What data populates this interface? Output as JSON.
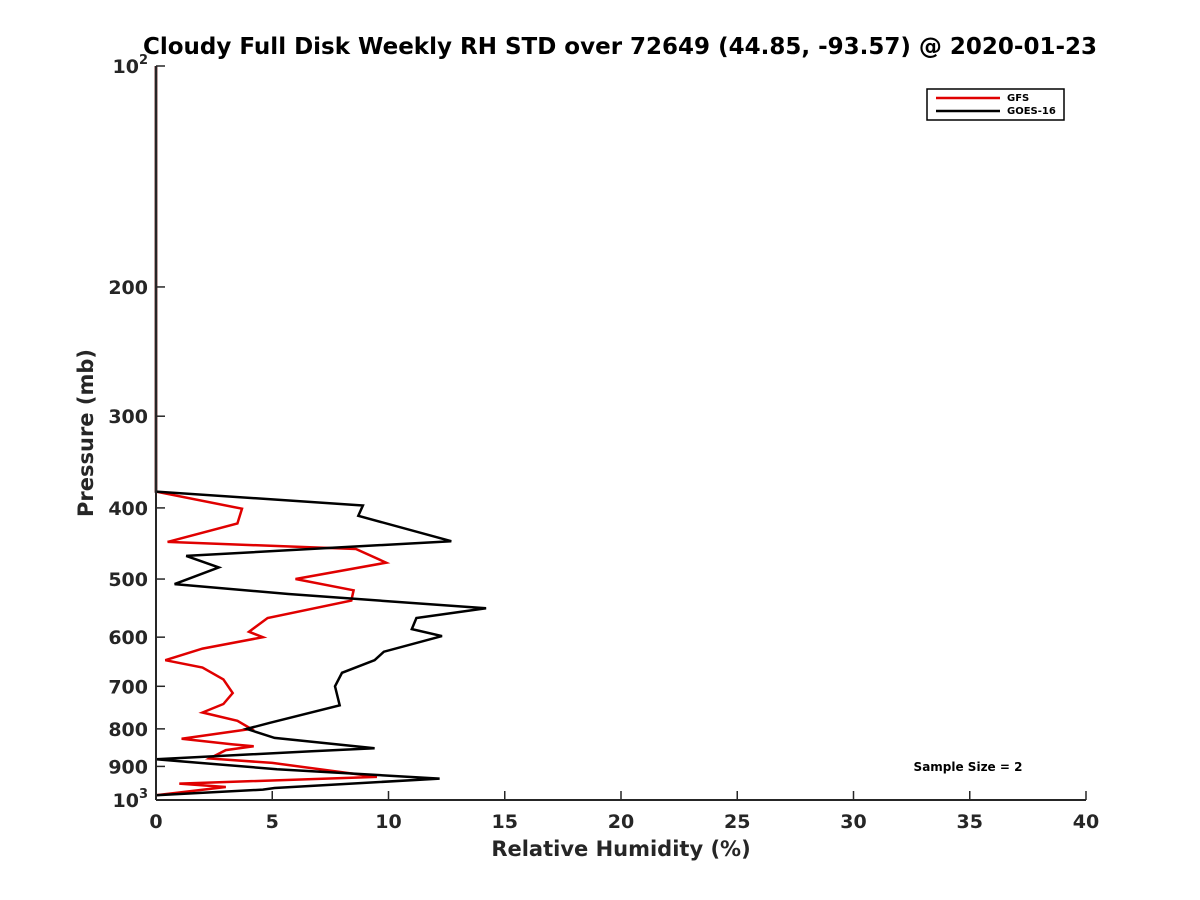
{
  "chart_data": {
    "type": "line",
    "title": "Cloudy Full Disk Weekly RH STD over 72649 (44.85, -93.57) @ 2020-01-23",
    "xlabel": "Relative Humidity (%)",
    "ylabel": "Pressure (mb)",
    "xlim": [
      0,
      40
    ],
    "ylim": [
      100,
      1000
    ],
    "y_scale": "log",
    "y_reversed": true,
    "x_ticks": [
      0,
      5,
      10,
      15,
      20,
      25,
      30,
      35,
      40
    ],
    "y_ticks": [
      {
        "value": 100,
        "base": "10",
        "exp": "2"
      },
      {
        "value": 200,
        "label": "200"
      },
      {
        "value": 300,
        "label": "300"
      },
      {
        "value": 400,
        "label": "400"
      },
      {
        "value": 500,
        "label": "500"
      },
      {
        "value": 600,
        "label": "600"
      },
      {
        "value": 700,
        "label": "700"
      },
      {
        "value": 800,
        "label": "800"
      },
      {
        "value": 900,
        "label": "900"
      },
      {
        "value": 1000,
        "base": "10",
        "exp": "3"
      }
    ],
    "grid": false,
    "legend_position": "top-right",
    "annotation": "Sample Size = 2",
    "series": [
      {
        "name": "GFS",
        "color": "#e00000",
        "points": [
          [
            0,
            100
          ],
          [
            0,
            380
          ],
          [
            3.7,
            401
          ],
          [
            3.5,
            420
          ],
          [
            0.5,
            445
          ],
          [
            8.6,
            455
          ],
          [
            9.9,
            475
          ],
          [
            6.0,
            500
          ],
          [
            8.5,
            518
          ],
          [
            8.4,
            535
          ],
          [
            4.8,
            565
          ],
          [
            4.0,
            590
          ],
          [
            4.6,
            600
          ],
          [
            2.0,
            622
          ],
          [
            0.4,
            645
          ],
          [
            2.0,
            660
          ],
          [
            2.9,
            685
          ],
          [
            3.3,
            715
          ],
          [
            2.9,
            740
          ],
          [
            2.0,
            760
          ],
          [
            3.5,
            780
          ],
          [
            4.1,
            800
          ],
          [
            1.1,
            825
          ],
          [
            3.3,
            840
          ],
          [
            4.2,
            845
          ],
          [
            3.0,
            855
          ],
          [
            2.3,
            878
          ],
          [
            5.0,
            890
          ],
          [
            9.5,
            930
          ],
          [
            1.0,
            950
          ],
          [
            3.0,
            960
          ],
          [
            0,
            985
          ]
        ]
      },
      {
        "name": "GOES-16",
        "color": "#000000",
        "points": [
          [
            0,
            100
          ],
          [
            0,
            380
          ],
          [
            8.9,
            397
          ],
          [
            8.7,
            410
          ],
          [
            12.7,
            444
          ],
          [
            1.3,
            465
          ],
          [
            2.7,
            482
          ],
          [
            0.8,
            508
          ],
          [
            5.7,
            524
          ],
          [
            14.2,
            548
          ],
          [
            11.2,
            565
          ],
          [
            11.0,
            585
          ],
          [
            12.3,
            598
          ],
          [
            9.8,
            628
          ],
          [
            9.4,
            645
          ],
          [
            8.0,
            671
          ],
          [
            7.7,
            700
          ],
          [
            7.9,
            743
          ],
          [
            4.9,
            785
          ],
          [
            3.9,
            800
          ],
          [
            5.1,
            823
          ],
          [
            9.4,
            850
          ],
          [
            6.7,
            858
          ],
          [
            0,
            880
          ],
          [
            5.2,
            908
          ],
          [
            12.2,
            935
          ],
          [
            5.1,
            963
          ],
          [
            4.6,
            968
          ],
          [
            0,
            985
          ]
        ]
      }
    ]
  }
}
